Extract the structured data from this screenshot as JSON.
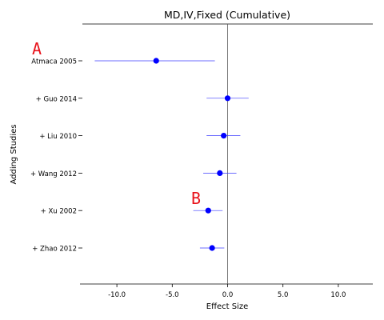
{
  "chart_data": {
    "type": "scatter",
    "title": "MD,IV,Fixed (Cumulative)",
    "xlabel": "Effect Size",
    "ylabel": "Adding Studies",
    "xlim": [
      -13.2,
      13.2
    ],
    "xticks": [
      -10.0,
      -5.0,
      0.0,
      5.0,
      10.0
    ],
    "xtick_labels": [
      "-10.0",
      "-5.0",
      "0.0",
      "5.0",
      "10.0"
    ],
    "reference_line_x": 0,
    "categories": [
      "Atmaca 2005",
      "+ Guo 2014",
      "+ Liu 2010",
      "+ Wang 2012",
      "+ Xu 2002",
      "+ Zhao 2012"
    ],
    "estimates": [
      -6.45,
      0.0,
      -0.35,
      -0.7,
      -1.75,
      -1.4
    ],
    "ci_lower": [
      -12.0,
      -1.9,
      -1.9,
      -2.2,
      -3.1,
      -2.5
    ],
    "ci_upper": [
      -1.15,
      1.9,
      1.15,
      0.8,
      -0.45,
      -0.3
    ],
    "annotations": [
      {
        "text": "A",
        "category": "Atmaca 2005"
      },
      {
        "text": "B",
        "category": "+ Xu 2002"
      }
    ],
    "grid": false
  },
  "colors": {
    "point": "#0000ff",
    "ci_line": "#3b3bff",
    "annotation": "#e8131b",
    "axis": "#000000"
  }
}
